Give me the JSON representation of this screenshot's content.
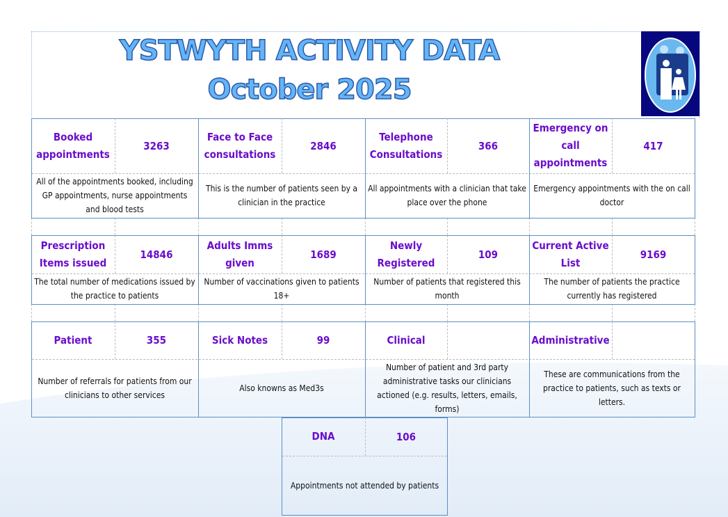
{
  "header": {
    "title": "YSTWYTH ACTIVITY DATA",
    "subtitle": "October 2025",
    "logo": "family-logo-icon"
  },
  "rows": [
    [
      {
        "label": "Booked appointments",
        "value": "3263",
        "desc": "All of the appointments booked, including GP appointments, nurse appointments and blood tests"
      },
      {
        "label": "Face to Face consultations",
        "value": "2846",
        "desc": "This is the number of patients seen by a clinician in the practice"
      },
      {
        "label": "Telephone Consultations",
        "value": "366",
        "desc": "All appointments with a clinician that take place over the phone"
      },
      {
        "label": "Emergency on call appointments",
        "value": "417",
        "desc": "Emergency appointments with the on call doctor"
      }
    ],
    [
      {
        "label": "Prescription Items issued",
        "value": "14846",
        "desc": "The total number of medications issued by the practice to patients"
      },
      {
        "label": "Adults Imms given",
        "value": "1689",
        "desc": "Number of vaccinations given to patients 18+"
      },
      {
        "label": "Newly Registered",
        "value": "109",
        "desc": "Number of patients that registered this month"
      },
      {
        "label": "Current Active List",
        "value": "9169",
        "desc": "The number of patients the practice currently has registered"
      }
    ],
    [
      {
        "label": "Patient",
        "value": "355",
        "desc": "Number of referrals for patients from our clinicians to other services"
      },
      {
        "label": "Sick Notes",
        "value": "99",
        "desc": "Also knowns as Med3s"
      },
      {
        "label": "Clinical",
        "value": "",
        "desc": "Number of patient and 3rd party administrative tasks our clinicians actioned (e.g. results, letters, emails, forms)"
      },
      {
        "label": "Administrative",
        "value": "",
        "desc": "These are communications from the practice to patients, such as texts or letters."
      }
    ]
  ],
  "dna": {
    "label": "DNA",
    "value": "106",
    "desc": "Appointments not attended by patients"
  }
}
